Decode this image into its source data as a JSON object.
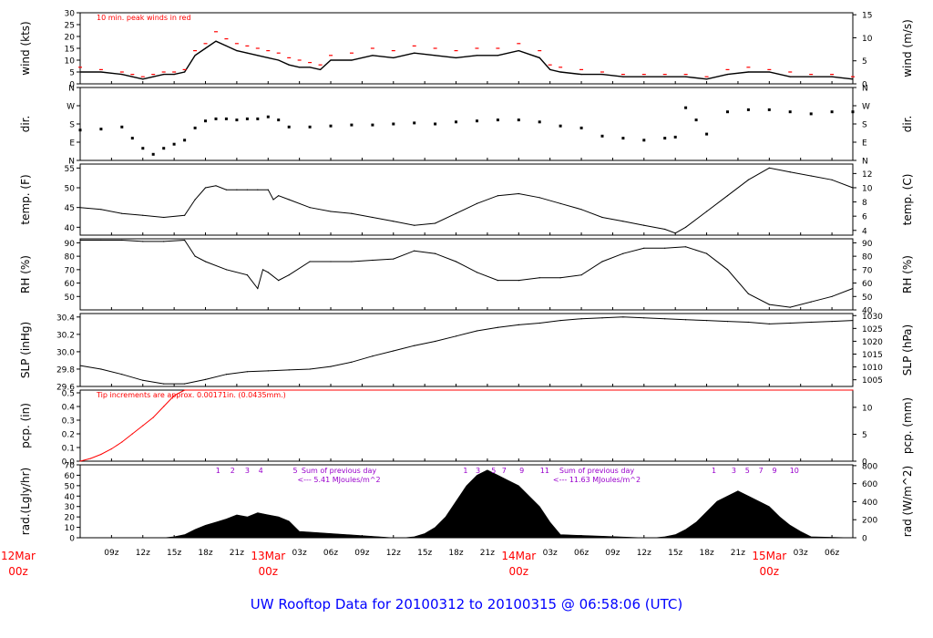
{
  "title": "UW Rooftop Data for 20100312  to  20100315 @ 06:58:06  (UTC)",
  "colors": {
    "red": "#ff0000",
    "blue": "#0000ff",
    "purple": "#9900cc",
    "black": "#000000"
  },
  "x_axis": {
    "hour_ticks": [
      {
        "h": 9,
        "label": "09z"
      },
      {
        "h": 12,
        "label": "12z"
      },
      {
        "h": 15,
        "label": "15z"
      },
      {
        "h": 18,
        "label": "18z"
      },
      {
        "h": 21,
        "label": "21z"
      },
      {
        "h": 27,
        "label": "03z"
      },
      {
        "h": 30,
        "label": "06z"
      },
      {
        "h": 33,
        "label": "09z"
      },
      {
        "h": 36,
        "label": "12z"
      },
      {
        "h": 39,
        "label": "15z"
      },
      {
        "h": 42,
        "label": "18z"
      },
      {
        "h": 45,
        "label": "21z"
      },
      {
        "h": 51,
        "label": "03z"
      },
      {
        "h": 54,
        "label": "06z"
      },
      {
        "h": 57,
        "label": "09z"
      },
      {
        "h": 60,
        "label": "12z"
      },
      {
        "h": 63,
        "label": "15z"
      },
      {
        "h": 66,
        "label": "18z"
      },
      {
        "h": 69,
        "label": "21z"
      },
      {
        "h": 75,
        "label": "03z"
      },
      {
        "h": 78,
        "label": "06z"
      }
    ],
    "day_ticks": [
      {
        "h": 0,
        "day": "12Mar",
        "hour": "00z"
      },
      {
        "h": 24,
        "day": "13Mar",
        "hour": "00z"
      },
      {
        "h": 48,
        "day": "14Mar",
        "hour": "00z"
      },
      {
        "h": 72,
        "day": "15Mar",
        "hour": "00z"
      }
    ]
  },
  "panels": {
    "wind": {
      "ylabel_left": "wind (kts)",
      "ylabel_right": "wind (m/s)",
      "annotation": "10 min. peak winds in red",
      "left_ticks": [
        "0",
        "5",
        "10",
        "15",
        "20",
        "25",
        "30"
      ],
      "right_ticks": [
        "0",
        "5",
        "10",
        "15"
      ]
    },
    "dir": {
      "ylabel_left": "dir.",
      "ylabel_right": "dir.",
      "left_ticks": [
        "N",
        "E",
        "S",
        "W",
        "N"
      ],
      "right_ticks": [
        "N",
        "E",
        "S",
        "W",
        "N"
      ]
    },
    "temp": {
      "ylabel_left": "temp. (F)",
      "ylabel_right": "temp. (C)",
      "left_ticks": [
        "40",
        "45",
        "50",
        "55"
      ],
      "right_ticks": [
        "4",
        "6",
        "8",
        "10",
        "12"
      ]
    },
    "rh": {
      "ylabel_left": "RH (%)",
      "ylabel_right": "RH (%)",
      "left_ticks": [
        "50",
        "60",
        "70",
        "80",
        "90"
      ],
      "right_ticks": [
        "40",
        "50",
        "60",
        "70",
        "80",
        "90"
      ]
    },
    "slp": {
      "ylabel_left": "SLP (inHg)",
      "ylabel_right": "SLP (hPa)",
      "left_ticks": [
        "29.6",
        "29.8",
        "30.0",
        "30.2",
        "30.4"
      ],
      "right_ticks": [
        "1005",
        "1010",
        "1015",
        "1020",
        "1025",
        "1030"
      ]
    },
    "pcp": {
      "ylabel_left": "pcp. (in)",
      "ylabel_right": "pcp. (mm)",
      "annotation": "Tip increments are approx. 0.00171in. (0.0435mm.)",
      "left_ticks": [
        "0.0",
        "0.1",
        "0.2",
        "0.3",
        "0.4",
        "0.5"
      ],
      "right_ticks": [
        "0",
        "5",
        "10"
      ]
    },
    "rad": {
      "ylabel_left": "rad.(Lgly/hr)",
      "ylabel_right": "rad (W/m^2)",
      "left_ticks": [
        "0",
        "10",
        "20",
        "30",
        "40",
        "50",
        "60",
        "70"
      ],
      "right_ticks": [
        "0",
        "200",
        "400",
        "600",
        "800"
      ],
      "sum_label": "Sum of previous day",
      "sum_day1": "<--- 5.41 MJoules/m^2",
      "sum_day2": "<--- 11.63 MJoules/m^2",
      "hour_numbers": [
        {
          "h": 19.2,
          "label": "1"
        },
        {
          "h": 20.6,
          "label": "2"
        },
        {
          "h": 22.0,
          "label": "3"
        },
        {
          "h": 23.3,
          "label": "4"
        },
        {
          "h": 26.6,
          "label": "5"
        },
        {
          "h": 42.9,
          "label": "1"
        },
        {
          "h": 44.1,
          "label": "3"
        },
        {
          "h": 45.6,
          "label": "5"
        },
        {
          "h": 46.6,
          "label": "7"
        },
        {
          "h": 48.3,
          "label": "9"
        },
        {
          "h": 50.5,
          "label": "11"
        },
        {
          "h": 66.7,
          "label": "1"
        },
        {
          "h": 68.6,
          "label": "3"
        },
        {
          "h": 69.9,
          "label": "5"
        },
        {
          "h": 71.2,
          "label": "7"
        },
        {
          "h": 72.5,
          "label": "9"
        },
        {
          "h": 74.4,
          "label": "10"
        }
      ]
    }
  },
  "chart_data": [
    {
      "type": "line",
      "name": "wind",
      "x_unit": "hours since 12Mar 00z",
      "ylim": [
        0,
        30
      ],
      "x": [
        6,
        8,
        10,
        11,
        12,
        13,
        14,
        15,
        16,
        17,
        18,
        19,
        20,
        21,
        22,
        23,
        24,
        25,
        26,
        27,
        28,
        29,
        30,
        32,
        34,
        36,
        38,
        40,
        42,
        44,
        46,
        48,
        50,
        51,
        52,
        54,
        56,
        58,
        60,
        62,
        64,
        66,
        68,
        70,
        72,
        74,
        76,
        78,
        80
      ],
      "values": [
        5,
        5,
        4,
        3,
        2,
        3,
        4,
        4,
        5,
        12,
        15,
        18,
        16,
        14,
        13,
        12,
        11,
        10,
        8,
        7,
        7,
        6,
        10,
        10,
        12,
        11,
        13,
        12,
        11,
        12,
        12,
        14,
        11,
        6,
        5,
        4,
        4,
        3,
        3,
        3,
        3,
        2,
        4,
        5,
        5,
        3,
        3,
        3,
        2
      ],
      "peak_values": [
        7,
        6,
        5,
        4,
        3,
        4,
        5,
        5,
        6,
        14,
        17,
        22,
        19,
        17,
        16,
        15,
        14,
        13,
        11,
        10,
        9,
        8,
        12,
        13,
        15,
        14,
        16,
        15,
        14,
        15,
        15,
        17,
        14,
        8,
        7,
        6,
        5,
        4,
        4,
        4,
        4,
        3,
        6,
        7,
        6,
        5,
        4,
        4,
        3
      ]
    },
    {
      "type": "scatter",
      "name": "dir",
      "x_unit": "hours since 12Mar 00z",
      "ylim": [
        0,
        360
      ],
      "x": [
        6,
        8,
        10,
        11,
        12,
        13,
        14,
        15,
        16,
        17,
        18,
        19,
        20,
        21,
        22,
        23,
        24,
        25,
        26,
        28,
        30,
        32,
        34,
        36,
        38,
        40,
        42,
        44,
        46,
        48,
        50,
        52,
        54,
        56,
        58,
        60,
        62,
        63,
        64,
        65,
        66,
        68,
        70,
        72,
        74,
        76,
        78,
        80
      ],
      "values": [
        150,
        155,
        165,
        110,
        60,
        30,
        60,
        80,
        100,
        160,
        195,
        205,
        205,
        200,
        205,
        205,
        215,
        200,
        165,
        165,
        170,
        175,
        175,
        180,
        185,
        180,
        190,
        195,
        200,
        200,
        190,
        170,
        160,
        120,
        110,
        100,
        110,
        115,
        260,
        200,
        130,
        240,
        250,
        250,
        240,
        230,
        240,
        240
      ]
    },
    {
      "type": "line",
      "name": "temp",
      "x_unit": "hours since 12Mar 00z",
      "ylim": [
        38,
        56
      ],
      "x": [
        6,
        8,
        10,
        12,
        14,
        16,
        17,
        18,
        19,
        20,
        21,
        22,
        23,
        24,
        24.5,
        25,
        26,
        28,
        30,
        32,
        34,
        36,
        38,
        40,
        42,
        44,
        46,
        48,
        50,
        52,
        54,
        56,
        58,
        60,
        62,
        63,
        64,
        66,
        68,
        70,
        72,
        74,
        76,
        78,
        80
      ],
      "values": [
        45,
        44.5,
        43.5,
        43,
        42.5,
        43,
        47,
        50,
        50.5,
        49.5,
        49.5,
        49.5,
        49.5,
        49.5,
        47,
        48,
        47,
        45,
        44,
        43.5,
        42.5,
        41.5,
        40.5,
        41,
        43.5,
        46,
        48,
        48.5,
        47.5,
        46,
        44.5,
        42.5,
        41.5,
        40.5,
        39.5,
        38.5,
        40,
        44,
        48,
        52,
        55,
        54,
        53,
        52,
        50
      ]
    },
    {
      "type": "line",
      "name": "rh",
      "x_unit": "hours since 12Mar 00z",
      "ylim": [
        40,
        93
      ],
      "x": [
        6,
        8,
        10,
        12,
        14,
        16,
        17,
        18,
        20,
        22,
        23,
        23.5,
        24,
        25,
        26,
        28,
        30,
        32,
        34,
        36,
        38,
        40,
        42,
        44,
        46,
        48,
        50,
        52,
        54,
        56,
        58,
        60,
        62,
        64,
        66,
        68,
        70,
        72,
        74,
        76,
        78,
        80
      ],
      "values": [
        92,
        92,
        92,
        91,
        91,
        92,
        80,
        76,
        70,
        66,
        56,
        70,
        68,
        62,
        66,
        76,
        76,
        76,
        77,
        78,
        84,
        82,
        76,
        68,
        62,
        62,
        64,
        64,
        66,
        76,
        82,
        86,
        86,
        87,
        82,
        70,
        52,
        44,
        42,
        46,
        50,
        56
      ]
    },
    {
      "type": "line",
      "name": "slp",
      "x_unit": "hours since 12Mar 00z",
      "ylim": [
        29.6,
        30.44
      ],
      "x": [
        6,
        8,
        10,
        12,
        14,
        16,
        18,
        20,
        22,
        24,
        26,
        28,
        30,
        32,
        34,
        36,
        38,
        40,
        42,
        44,
        46,
        48,
        50,
        52,
        54,
        56,
        58,
        60,
        62,
        64,
        66,
        68,
        70,
        72,
        74,
        76,
        78,
        80
      ],
      "values": [
        29.84,
        29.8,
        29.74,
        29.67,
        29.63,
        29.63,
        29.68,
        29.74,
        29.77,
        29.78,
        29.79,
        29.8,
        29.83,
        29.88,
        29.95,
        30.01,
        30.07,
        30.12,
        30.18,
        30.24,
        30.28,
        30.31,
        30.33,
        30.36,
        30.38,
        30.39,
        30.4,
        30.39,
        30.38,
        30.37,
        30.36,
        30.35,
        30.34,
        30.32,
        30.33,
        30.34,
        30.35,
        30.36
      ]
    },
    {
      "type": "line",
      "name": "pcp",
      "x_unit": "hours since 12Mar 00z",
      "ylim": [
        0,
        0.52
      ],
      "x": [
        6,
        7,
        8,
        9,
        10,
        11,
        12,
        13,
        14,
        15,
        16,
        80
      ],
      "values": [
        0,
        0.02,
        0.05,
        0.09,
        0.14,
        0.2,
        0.26,
        0.32,
        0.4,
        0.48,
        0.52,
        0.52
      ]
    },
    {
      "type": "area",
      "name": "rad",
      "x_unit": "hours since 12Mar 00z",
      "ylim": [
        0,
        70
      ],
      "x": [
        6,
        12,
        13,
        14,
        15,
        16,
        17,
        18,
        19,
        20,
        21,
        22,
        23,
        24,
        25,
        26,
        27,
        36,
        37,
        38,
        39,
        40,
        41,
        42,
        43,
        44,
        45,
        46,
        47,
        48,
        49,
        50,
        51,
        52,
        60,
        61,
        62,
        63,
        64,
        65,
        66,
        67,
        68,
        69,
        70,
        71,
        72,
        73,
        74,
        75,
        76,
        80
      ],
      "values": [
        0,
        0,
        0,
        0,
        1,
        3,
        8,
        12,
        15,
        18,
        22,
        20,
        24,
        22,
        20,
        16,
        6,
        0,
        0,
        1,
        4,
        10,
        20,
        35,
        50,
        60,
        65,
        60,
        55,
        50,
        40,
        30,
        15,
        3,
        0,
        0,
        1,
        3,
        8,
        15,
        25,
        35,
        40,
        45,
        40,
        35,
        30,
        20,
        12,
        6,
        1,
        0
      ]
    }
  ]
}
